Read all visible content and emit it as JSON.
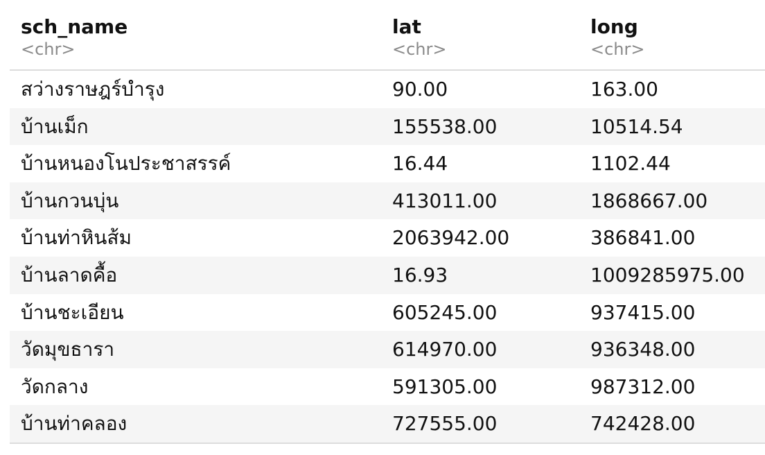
{
  "columns": [
    {
      "name": "sch_name",
      "type": "<chr>"
    },
    {
      "name": "lat",
      "type": "<chr>"
    },
    {
      "name": "long",
      "type": "<chr>"
    }
  ],
  "rows": [
    [
      "สว่างราษฎร์บำรุง",
      "90.00",
      "163.00"
    ],
    [
      "บ้านเม็ก",
      "155538.00",
      "10514.54"
    ],
    [
      "บ้านหนองโนประชาสรรค์",
      "16.44",
      "1102.44"
    ],
    [
      "บ้านกวนบุ่น",
      "413011.00",
      "1868667.00"
    ],
    [
      "บ้านท่าหินส้ม",
      "2063942.00",
      "386841.00"
    ],
    [
      "บ้านลาดคื้อ",
      "16.93",
      "1009285975.00"
    ],
    [
      "บ้านชะเอียน",
      "605245.00",
      "937415.00"
    ],
    [
      "วัดมุขธารา",
      "614970.00",
      "936348.00"
    ],
    [
      "วัดกลาง",
      "591305.00",
      "987312.00"
    ],
    [
      "บ้านท่าคลอง",
      "727555.00",
      "742428.00"
    ]
  ]
}
